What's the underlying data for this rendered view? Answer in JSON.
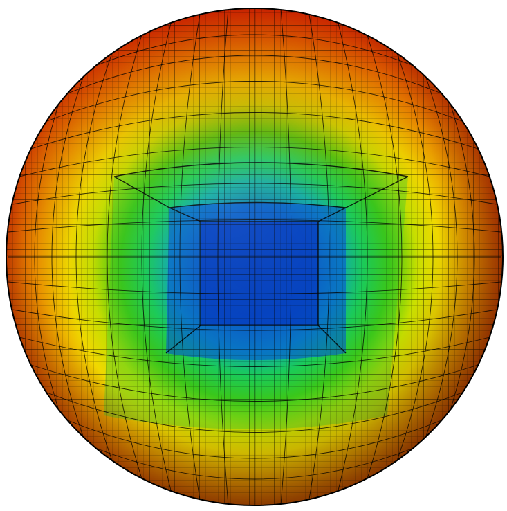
{
  "scene": {
    "subject": "sphere-mesh",
    "colormap": [
      "#0030c8",
      "#0060ff",
      "#00c0e0",
      "#20d040",
      "#90e010",
      "#f0e000",
      "#f09000",
      "#e04000",
      "#c81800"
    ],
    "background": "#ffffff",
    "mesh_line_color": "#000000"
  }
}
